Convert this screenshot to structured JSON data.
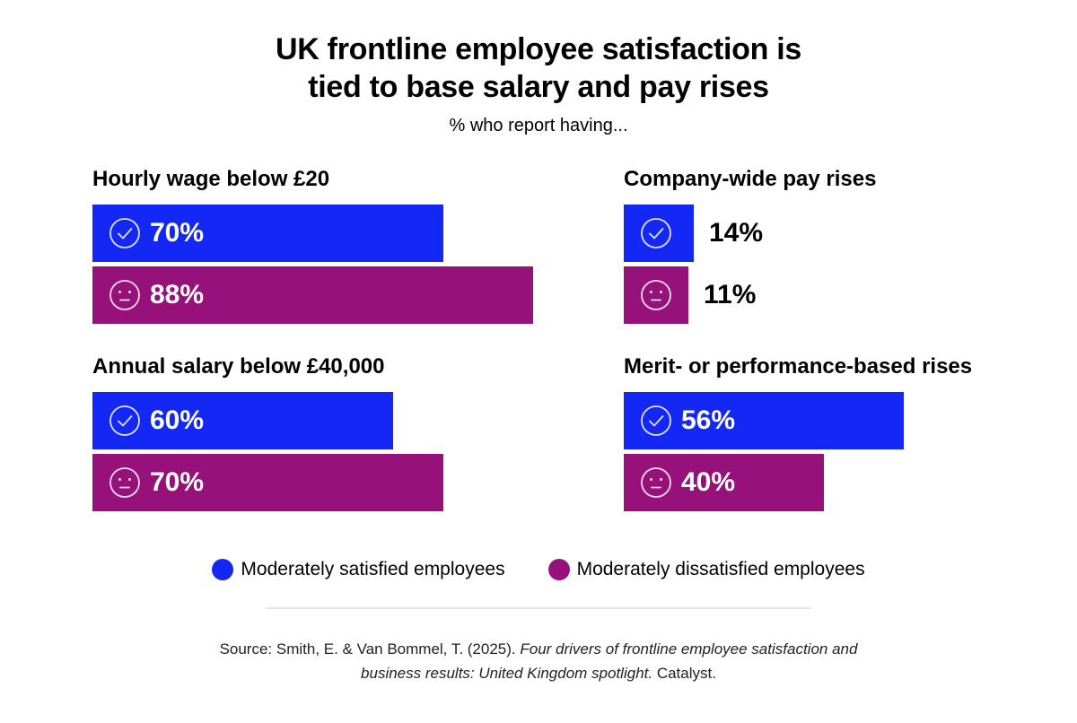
{
  "header": {
    "title_line1": "UK frontline employee satisfaction is",
    "title_line2": "tied to base salary and pay rises",
    "subtitle": "% who report having..."
  },
  "colors": {
    "satisfied": "#1428f5",
    "dissatisfied": "#97117a",
    "icon_stroke": "#ffffff"
  },
  "chart_data": {
    "type": "bar",
    "orientation": "horizontal",
    "title": "UK frontline employee satisfaction is tied to base salary and pay rises",
    "subtitle": "% who report having...",
    "unit": "%",
    "xlim": [
      0,
      100
    ],
    "grid": false,
    "legend_position": "bottom",
    "series": [
      {
        "name": "Moderately satisfied employees",
        "color": "#1428f5",
        "icon": "check-circle-icon"
      },
      {
        "name": "Moderately dissatisfied employees",
        "color": "#97117a",
        "icon": "neutral-face-icon"
      }
    ],
    "panels": [
      {
        "title": "Hourly wage below £20",
        "values": [
          70,
          88
        ],
        "labels": [
          "70%",
          "88%"
        ]
      },
      {
        "title": "Company-wide pay rises",
        "values": [
          14,
          11
        ],
        "labels": [
          "14%",
          "11%"
        ]
      },
      {
        "title": "Annual salary below £40,000",
        "values": [
          60,
          70
        ],
        "labels": [
          "60%",
          "70%"
        ]
      },
      {
        "title": "Merit- or performance-based rises",
        "values": [
          56,
          40
        ],
        "labels": [
          "56%",
          "40%"
        ]
      }
    ]
  },
  "legend": {
    "satisfied_label": "Moderately satisfied employees",
    "dissatisfied_label": "Moderately dissatisfied employees"
  },
  "source": {
    "prefix": "Source: Smith, E. & Van Bommel, T. (2025). ",
    "title_part1": "Four drivers of frontline employee satisfaction and",
    "title_part2": "business results: United Kingdom spotlight.",
    "suffix": " Catalyst."
  }
}
